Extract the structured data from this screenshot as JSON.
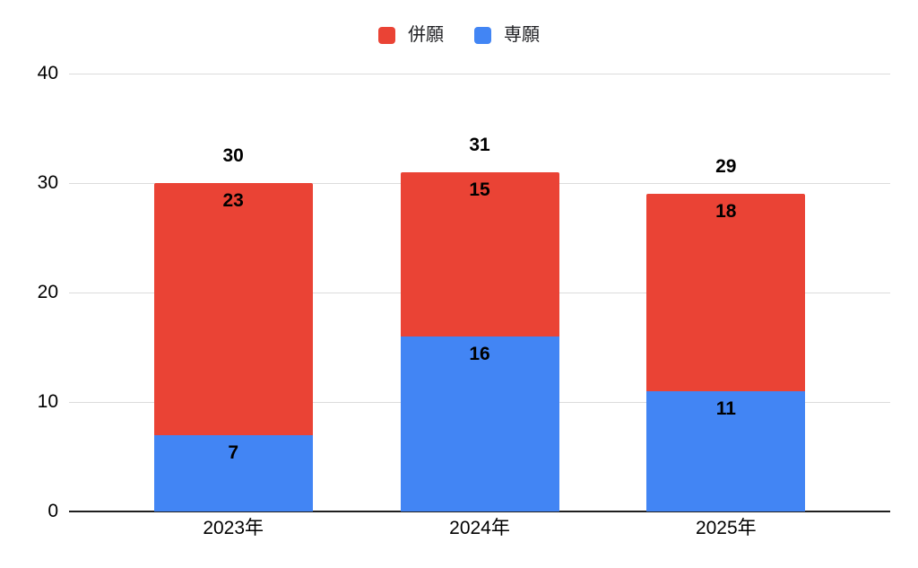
{
  "chart_data": {
    "type": "bar",
    "stacked": true,
    "title": "",
    "xlabel": "",
    "ylabel": "",
    "categories": [
      "2023年",
      "2024年",
      "2025年"
    ],
    "series": [
      {
        "name": "併願",
        "color": "#EA4335",
        "values": [
          23,
          15,
          18
        ]
      },
      {
        "name": "専願",
        "color": "#4285F4",
        "values": [
          7,
          16,
          11
        ]
      }
    ],
    "stack_bottom_to_top": [
      "専願",
      "併願"
    ],
    "totals": [
      30,
      31,
      29
    ],
    "ylim": [
      0,
      40
    ],
    "yticks": [
      0,
      10,
      20,
      30,
      40
    ],
    "grid": true,
    "legend_position": "top-center",
    "colors": {
      "gridline": "#dcdcdc",
      "axis_line": "#1f1f1f",
      "label_text": "#000000",
      "legend_text": "#202124",
      "background": "#ffffff"
    }
  }
}
